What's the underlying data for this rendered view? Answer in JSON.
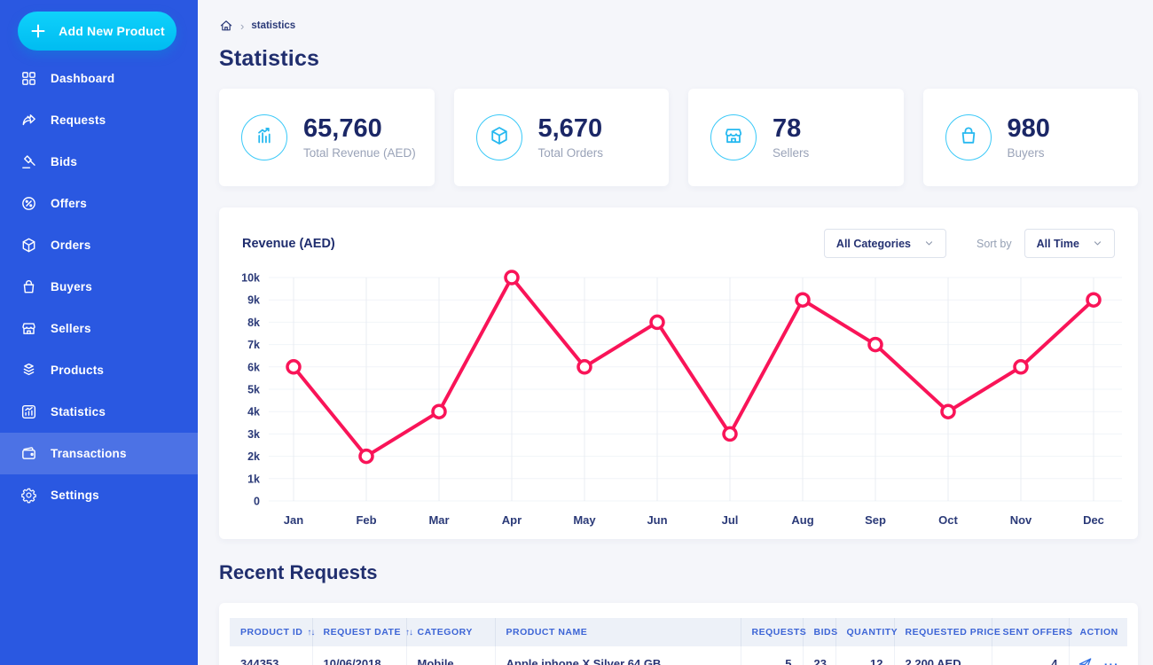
{
  "sidebar": {
    "add_button": {
      "label": "Add New Product",
      "icon": "plus-icon"
    },
    "items": [
      {
        "label": "Dashboard",
        "icon": "dashboard-icon",
        "active": false
      },
      {
        "label": "Requests",
        "icon": "requests-icon",
        "active": false
      },
      {
        "label": "Bids",
        "icon": "bids-icon",
        "active": false
      },
      {
        "label": "Offers",
        "icon": "offers-icon",
        "active": false
      },
      {
        "label": "Orders",
        "icon": "orders-icon",
        "active": false
      },
      {
        "label": "Buyers",
        "icon": "buyers-icon",
        "active": false
      },
      {
        "label": "Sellers",
        "icon": "sellers-icon",
        "active": false
      },
      {
        "label": "Products",
        "icon": "products-icon",
        "active": false
      },
      {
        "label": "Statistics",
        "icon": "statistics-icon",
        "active": false
      },
      {
        "label": "Transactions",
        "icon": "transactions-icon",
        "active": true
      },
      {
        "label": "Settings",
        "icon": "settings-icon",
        "active": false
      }
    ]
  },
  "breadcrumb": {
    "home_icon": "home-icon",
    "separator": "›",
    "current": "statistics"
  },
  "page_title": "Statistics",
  "stat_cards": [
    {
      "icon": "revenue-chart-icon",
      "value": "65,760",
      "label": "Total Revenue (AED)"
    },
    {
      "icon": "cube-icon",
      "value": "5,670",
      "label": "Total Orders"
    },
    {
      "icon": "store-icon",
      "value": "78",
      "label": "Sellers"
    },
    {
      "icon": "bag-icon",
      "value": "980",
      "label": "Buyers"
    }
  ],
  "chart_panel": {
    "title": "Revenue (AED)",
    "category_filter": {
      "value": "All Categories"
    },
    "sort_label": "Sort by",
    "time_filter": {
      "value": "All Time"
    }
  },
  "chart_data": {
    "type": "line",
    "title": "Revenue (AED)",
    "x": [
      "Jan",
      "Feb",
      "Mar",
      "Apr",
      "May",
      "Jun",
      "Jul",
      "Aug",
      "Sep",
      "Oct",
      "Nov",
      "Dec"
    ],
    "series": [
      {
        "name": "Revenue (AED)",
        "values": [
          6000,
          2000,
          4000,
          10000,
          6000,
          8000,
          3000,
          9000,
          7000,
          4000,
          6000,
          9000
        ],
        "color": "#f91458",
        "marker": "open-circle"
      }
    ],
    "ylim": [
      0,
      10000
    ],
    "ytick_labels": [
      "0",
      "1k",
      "2k",
      "3k",
      "4k",
      "5k",
      "6k",
      "7k",
      "8k",
      "9k",
      "10k"
    ],
    "grid": true,
    "legend": false
  },
  "recent_requests": {
    "title": "Recent Requests",
    "columns": [
      {
        "label": "PRODUCT ID",
        "sortable": true
      },
      {
        "label": "REQUEST DATE",
        "sortable": true
      },
      {
        "label": "CATEGORY",
        "sortable": false
      },
      {
        "label": "PRODUCT NAME",
        "sortable": false
      },
      {
        "label": "REQUESTS",
        "sortable": false
      },
      {
        "label": "BIDS",
        "sortable": false
      },
      {
        "label": "QUANTITY",
        "sortable": false
      },
      {
        "label": "REQUESTED PRICE",
        "sortable": false
      },
      {
        "label": "SENT OFFERS",
        "sortable": false
      },
      {
        "label": "ACTION",
        "sortable": false
      }
    ],
    "rows": [
      {
        "cells": [
          "344353",
          "10/06/2018",
          "Mobile",
          "Apple iphone X Silver 64 GB",
          "5",
          "23",
          "12",
          "2,200 AED",
          "4"
        ],
        "actions": [
          "send-icon",
          "ellipsis-icon"
        ]
      }
    ]
  },
  "colors": {
    "sidebar_blue": "#2a58e1",
    "sidebar_active_item": "#4a71e6",
    "accent_cyan": "#00c3f4",
    "chart_line_pink": "#f91458",
    "heading_navy": "#202e6e",
    "muted_grey": "#9aa3b8",
    "table_header_blue": "#3d65d6"
  }
}
